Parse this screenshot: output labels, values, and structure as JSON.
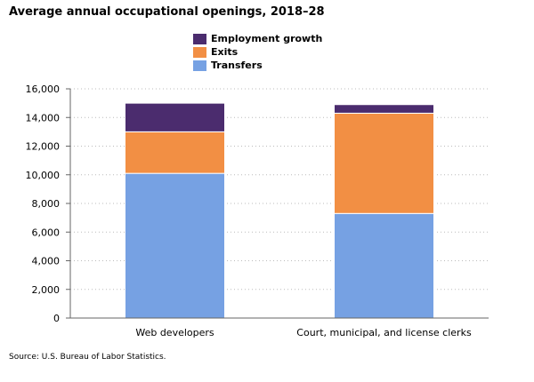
{
  "title": "Average annual occupational openings, 2018–28",
  "source": "Source: U.S. Bureau of Labor Statistics.",
  "colors": {
    "employment_growth": "#4b2c6e",
    "exits": "#f28f44",
    "transfers": "#76a1e3",
    "axis": "#666666",
    "grid": "#bbbbbb"
  },
  "chart_data": {
    "type": "bar",
    "stacked": true,
    "categories": [
      "Web developers",
      "Court, municipal, and license clerks"
    ],
    "series": [
      {
        "name": "Transfers",
        "values": [
          10100,
          7300
        ]
      },
      {
        "name": "Exits",
        "values": [
          2900,
          7000
        ]
      },
      {
        "name": "Employment growth",
        "values": [
          2000,
          600
        ]
      }
    ],
    "legend_order": [
      "Employment growth",
      "Exits",
      "Transfers"
    ],
    "legend_position": "top",
    "ylim": [
      0,
      16000
    ],
    "yticks": [
      "0",
      "2,000",
      "4,000",
      "6,000",
      "8,000",
      "10,000",
      "12,000",
      "14,000",
      "16,000"
    ],
    "grid": "horizontal dotted"
  }
}
